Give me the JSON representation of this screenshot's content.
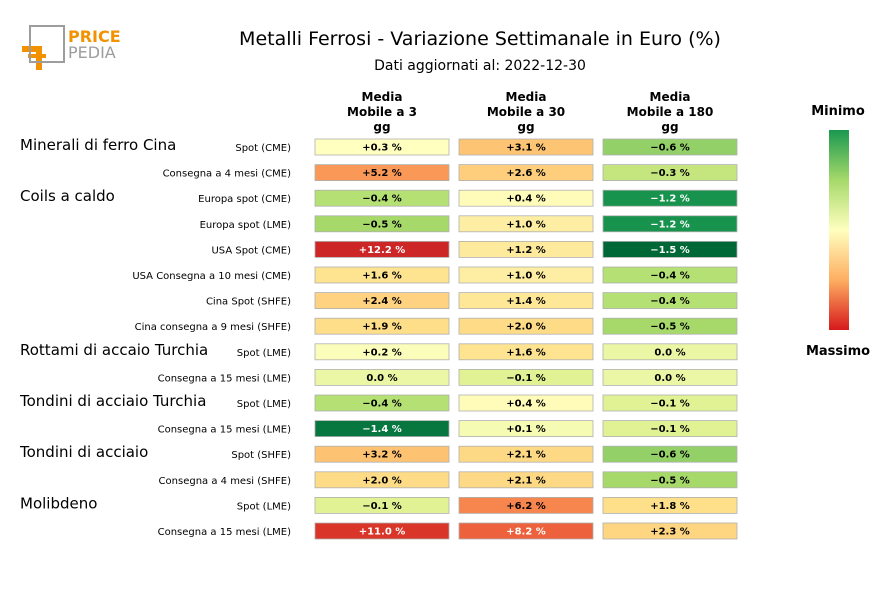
{
  "logo": {
    "line1": "PRICE",
    "line2": "PEDIA",
    "colors": {
      "accent": "#f39200",
      "grey": "#9d9d9c"
    }
  },
  "chart_data": {
    "type": "heatmap",
    "title": "Metalli Ferrosi - Variazione Settimanale in Euro (%)",
    "subtitle": "Dati aggiornati al: 2022-12-30",
    "columns": [
      [
        "Media",
        "Mobile a 3",
        "gg"
      ],
      [
        "Media",
        "Mobile a 30",
        "gg"
      ],
      [
        "Media",
        "Mobile a 180",
        "gg"
      ]
    ],
    "groups": [
      {
        "name": "Minerali di ferro Cina",
        "rows": [
          {
            "label": "Spot (CME)",
            "values": [
              0.3,
              3.1,
              -0.6
            ],
            "text": [
              "+0.3 %",
              "+3.1 %",
              "−0.6 %"
            ]
          },
          {
            "label": "Consegna a 4 mesi (CME)",
            "values": [
              5.2,
              2.6,
              -0.3
            ],
            "text": [
              "+5.2 %",
              "+2.6 %",
              "−0.3 %"
            ]
          }
        ]
      },
      {
        "name": "Coils a caldo",
        "rows": [
          {
            "label": "Europa spot (CME)",
            "values": [
              -0.4,
              0.4,
              -1.2
            ],
            "text": [
              "−0.4 %",
              "+0.4 %",
              "−1.2 %"
            ]
          },
          {
            "label": "Europa spot (LME)",
            "values": [
              -0.5,
              1.0,
              -1.2
            ],
            "text": [
              "−0.5 %",
              "+1.0 %",
              "−1.2 %"
            ]
          },
          {
            "label": "USA Spot (CME)",
            "values": [
              12.2,
              1.2,
              -1.5
            ],
            "text": [
              "+12.2 %",
              "+1.2 %",
              "−1.5 %"
            ]
          },
          {
            "label": "USA Consegna a 10 mesi (CME)",
            "values": [
              1.6,
              1.0,
              -0.4
            ],
            "text": [
              "+1.6 %",
              "+1.0 %",
              "−0.4 %"
            ]
          },
          {
            "label": "Cina Spot (SHFE)",
            "values": [
              2.4,
              1.4,
              -0.4
            ],
            "text": [
              "+2.4 %",
              "+1.4 %",
              "−0.4 %"
            ]
          },
          {
            "label": "Cina consegna a 9 mesi (SHFE)",
            "values": [
              1.9,
              2.0,
              -0.5
            ],
            "text": [
              "+1.9 %",
              "+2.0 %",
              "−0.5 %"
            ]
          }
        ]
      },
      {
        "name": "Rottami di accaio Turchia",
        "rows": [
          {
            "label": "Spot (LME)",
            "values": [
              0.2,
              1.6,
              0.0
            ],
            "text": [
              "+0.2 %",
              "+1.6 %",
              "0.0 %"
            ]
          },
          {
            "label": "Consegna a 15 mesi (LME)",
            "values": [
              0.0,
              -0.1,
              0.0
            ],
            "text": [
              "0.0 %",
              "−0.1 %",
              "0.0 %"
            ]
          }
        ]
      },
      {
        "name": "Tondini di acciaio Turchia",
        "rows": [
          {
            "label": "Spot (LME)",
            "values": [
              -0.4,
              0.4,
              -0.1
            ],
            "text": [
              "−0.4 %",
              "+0.4 %",
              "−0.1 %"
            ]
          },
          {
            "label": "Consegna a 15 mesi (LME)",
            "values": [
              -1.4,
              0.1,
              -0.1
            ],
            "text": [
              "−1.4 %",
              "+0.1 %",
              "−0.1 %"
            ]
          }
        ]
      },
      {
        "name": "Tondini di acciaio",
        "rows": [
          {
            "label": "Spot (SHFE)",
            "values": [
              3.2,
              2.1,
              -0.6
            ],
            "text": [
              "+3.2 %",
              "+2.1 %",
              "−0.6 %"
            ]
          },
          {
            "label": "Consegna a 4 mesi (SHFE)",
            "values": [
              2.0,
              2.1,
              -0.5
            ],
            "text": [
              "+2.0 %",
              "+2.1 %",
              "−0.5 %"
            ]
          }
        ]
      },
      {
        "name": "Molibdeno",
        "rows": [
          {
            "label": "Spot (LME)",
            "values": [
              -0.1,
              6.2,
              1.8
            ],
            "text": [
              "−0.1 %",
              "+6.2 %",
              "+1.8 %"
            ]
          },
          {
            "label": "Consegna a 15 mesi (LME)",
            "values": [
              11.0,
              8.2,
              2.3
            ],
            "text": [
              "+11.0 %",
              "+8.2 %",
              "+2.3 %"
            ]
          }
        ]
      }
    ],
    "colormap": "RdYlGn_r",
    "color_range": [
      -1.5,
      12.2
    ],
    "legend": {
      "min_label": "Minimo",
      "max_label": "Massimo",
      "placement": "right"
    }
  }
}
